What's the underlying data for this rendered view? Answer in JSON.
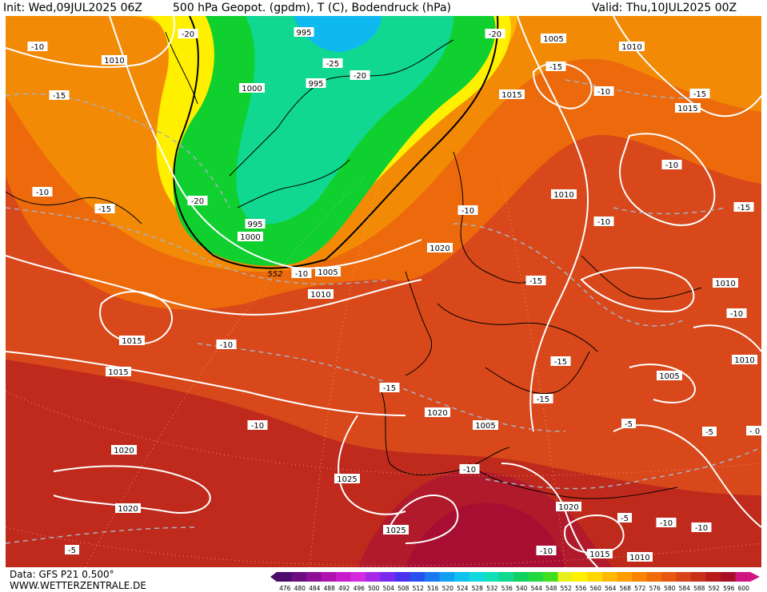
{
  "header": {
    "init_label": "Init: Wed,09JUL2025 06Z",
    "title": "500 hPa Geopot. (gpdm), T (C), Bodendruck (hPa)",
    "valid_label": "Valid: Thu,10JUL2025 00Z"
  },
  "footer": {
    "data_source": "Data: GFS P21 0.500°",
    "website": "WWW.WETTERZENTRALE.DE"
  },
  "legend": {
    "values": [
      "476",
      "480",
      "484",
      "488",
      "492",
      "496",
      "500",
      "504",
      "508",
      "512",
      "516",
      "520",
      "524",
      "528",
      "532",
      "536",
      "540",
      "544",
      "548",
      "552",
      "556",
      "560",
      "564",
      "568",
      "572",
      "576",
      "580",
      "584",
      "588",
      "592",
      "596",
      "600"
    ],
    "colors": [
      "#4b0c6b",
      "#6a0e82",
      "#8e1097",
      "#b012b0",
      "#c81acb",
      "#d42ae0",
      "#a828e8",
      "#7a2aee",
      "#4a30f0",
      "#2850f0",
      "#1a78f0",
      "#12a0f0",
      "#10c0f0",
      "#10d8e0",
      "#10e0b8",
      "#10d890",
      "#10d060",
      "#20d840",
      "#40e020",
      "#e8f018",
      "#fff000",
      "#ffd800",
      "#ffb800",
      "#ff9c00",
      "#f88400",
      "#f06c0a",
      "#e85810",
      "#d84418",
      "#c83018",
      "#b81c1c",
      "#a80e24",
      "#d01480"
    ]
  },
  "pressure_labels": [
    "995",
    "1010",
    "1005",
    "1010",
    "1000",
    "995",
    "1015",
    "1015",
    "1010",
    "995",
    "1000",
    "1005",
    "1010",
    "1020",
    "1010",
    "1010",
    "1015",
    "1015",
    "1020",
    "1005",
    "1005",
    "1020",
    "1025",
    "1020",
    "1025",
    "1020",
    "1015",
    "1010",
    "1010"
  ],
  "temperature_labels": [
    "-10",
    "-15",
    "-10",
    "-20",
    "-25",
    "-20",
    "-15",
    "-10",
    "-15",
    "-10",
    "-15",
    "-10",
    "-10",
    "-15",
    "-20",
    "-20",
    "-15",
    "-10",
    "-15",
    "-10",
    "-15",
    "-10",
    "-10",
    "-10",
    "-5",
    "-15",
    "-10",
    "-5",
    "-10",
    "-5",
    "-5",
    "-5",
    "0",
    "-10"
  ],
  "height_labels": [
    "552"
  ]
}
